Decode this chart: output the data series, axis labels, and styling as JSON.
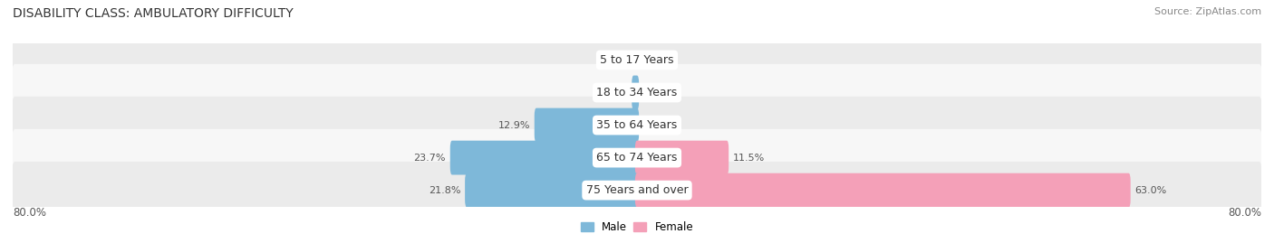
{
  "title": "DISABILITY CLASS: AMBULATORY DIFFICULTY",
  "source": "Source: ZipAtlas.com",
  "categories": [
    "5 to 17 Years",
    "18 to 34 Years",
    "35 to 64 Years",
    "65 to 74 Years",
    "75 Years and over"
  ],
  "male_values": [
    0.0,
    0.42,
    12.9,
    23.7,
    21.8
  ],
  "female_values": [
    0.0,
    0.0,
    0.0,
    11.5,
    63.0
  ],
  "male_color": "#7eb8d9",
  "female_color": "#f4a0b8",
  "axis_limit": 80.0,
  "x_left_label": "80.0%",
  "x_right_label": "80.0%",
  "title_fontsize": 10,
  "source_fontsize": 8,
  "label_fontsize": 8,
  "cat_fontsize": 9,
  "tick_fontsize": 8.5,
  "background_color": "#ffffff",
  "bar_height": 0.55,
  "row_bg_colors": [
    "#ebebeb",
    "#f7f7f7",
    "#ebebeb",
    "#f7f7f7",
    "#ebebeb"
  ],
  "min_bar_for_label": 0.0
}
